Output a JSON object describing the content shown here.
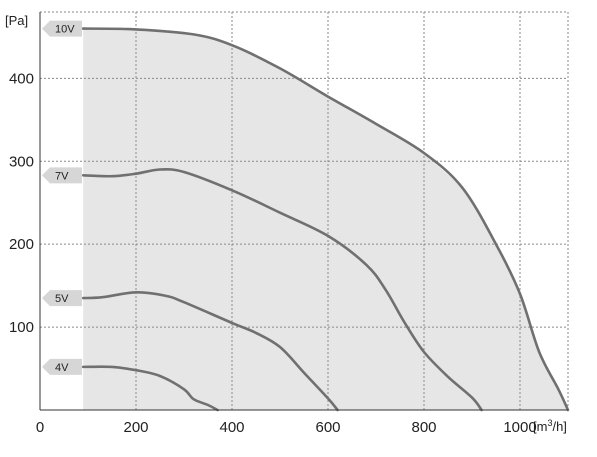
{
  "chart_data": {
    "type": "line",
    "ylabel": "[Pa]",
    "xlabel": "[m³/h]",
    "xlim": [
      0,
      1100
    ],
    "ylim": [
      0,
      480
    ],
    "x_ticks": [
      0,
      200,
      400,
      600,
      800,
      1000
    ],
    "y_ticks": [
      100,
      200,
      300,
      400
    ],
    "grid": true,
    "colors": {
      "curve": "#707070",
      "area": "#e6e6e6",
      "tag": "#d6d6d6",
      "grid": "#8a8a8a"
    },
    "series": [
      {
        "name": "10V",
        "x": [
          90,
          200,
          320,
          400,
          500,
          600,
          700,
          800,
          880,
          950,
          1000,
          1040,
          1080,
          1100
        ],
        "y": [
          460,
          459,
          453,
          440,
          412,
          378,
          345,
          310,
          268,
          200,
          140,
          70,
          25,
          0
        ]
      },
      {
        "name": "7V",
        "x": [
          90,
          150,
          200,
          250,
          300,
          400,
          500,
          600,
          680,
          720,
          760,
          800,
          850,
          900,
          920
        ],
        "y": [
          283,
          282,
          285,
          290,
          287,
          265,
          238,
          210,
          175,
          145,
          105,
          70,
          40,
          15,
          0
        ]
      },
      {
        "name": "5V",
        "x": [
          90,
          130,
          200,
          260,
          300,
          400,
          450,
          500,
          550,
          600,
          620
        ],
        "y": [
          135,
          136,
          142,
          138,
          130,
          105,
          93,
          76,
          45,
          14,
          0
        ]
      },
      {
        "name": "4V",
        "x": [
          90,
          150,
          200,
          250,
          300,
          320,
          350,
          370
        ],
        "y": [
          52,
          52,
          48,
          41,
          25,
          13,
          6,
          0
        ]
      }
    ]
  }
}
